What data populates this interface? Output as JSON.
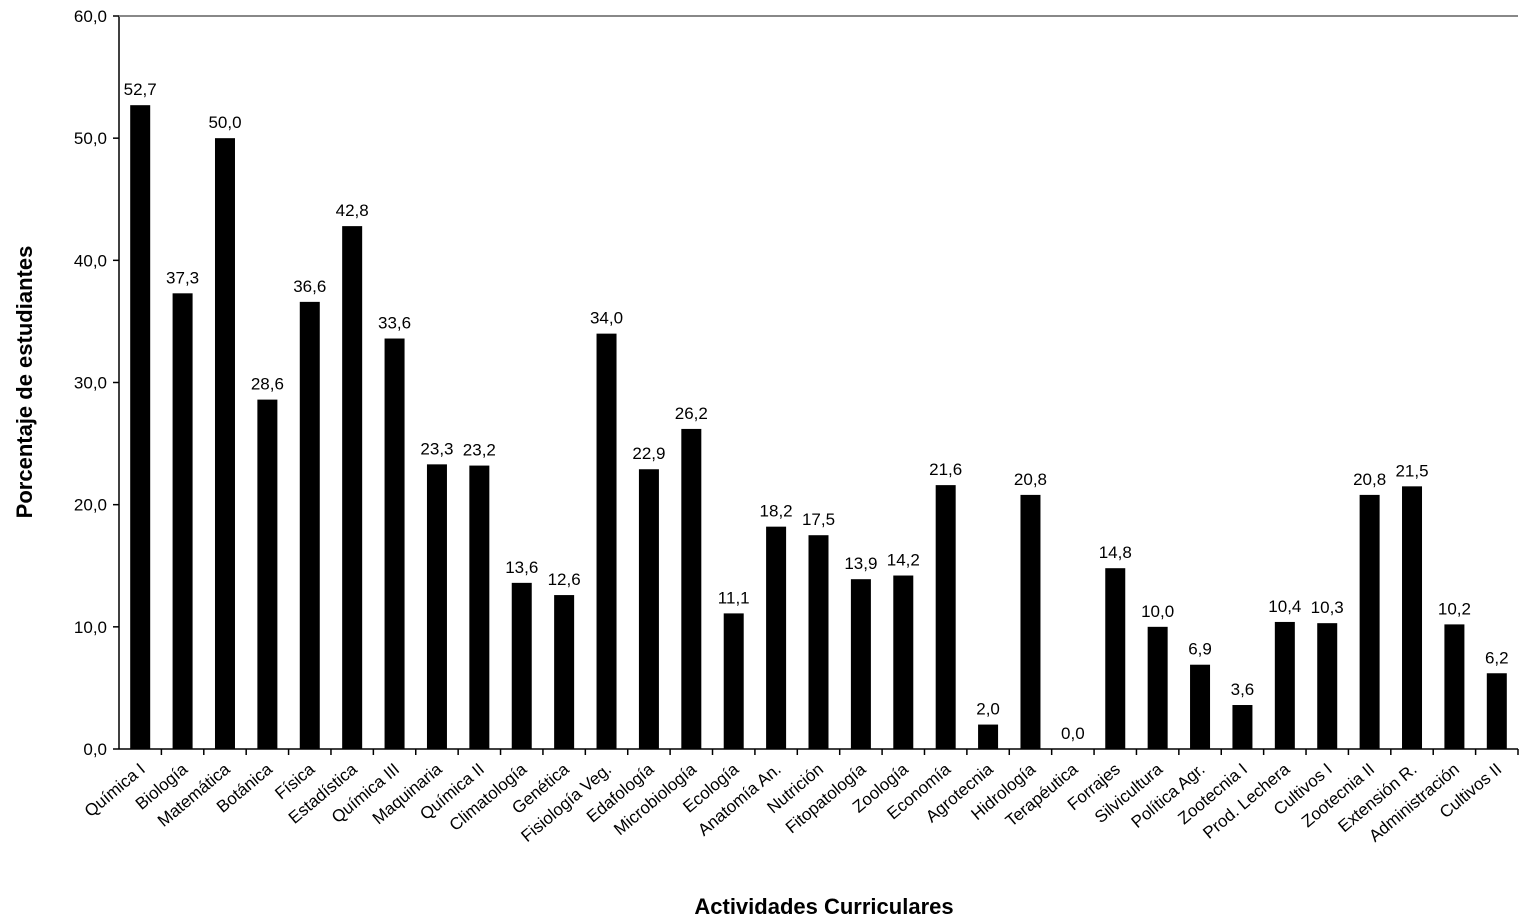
{
  "chart_data": {
    "type": "bar",
    "title": "",
    "xlabel": "Actividades Curriculares",
    "ylabel": "Porcentaje de estudiantes",
    "ylim": [
      0,
      60
    ],
    "yticks": [
      "0,0",
      "10,0",
      "20,0",
      "30,0",
      "40,0",
      "50,0",
      "60,0"
    ],
    "grid": false,
    "bar_color": "#000000",
    "categories": [
      "Química I",
      "Biología",
      "Matemática",
      "Botánica",
      "Física",
      "Estadística",
      "Química III",
      "Maquinaria",
      "Química II",
      "Climatología",
      "Genética",
      "Fisiología Veg.",
      "Edafología",
      "Microbiología",
      "Ecología",
      "Anatomía An.",
      "Nutrición",
      "Fitopatología",
      "Zoología",
      "Economía",
      "Agrotecnia",
      "Hidrología",
      "Terapéutica",
      "Forrajes",
      "Silvicultura",
      "Política Agr.",
      "Zootecnia I",
      "Prod. Lechera",
      "Cultivos I",
      "Zootecnia II",
      "Extensión R.",
      "Administración",
      "Cultivos II"
    ],
    "values": [
      52.7,
      37.3,
      50.0,
      28.6,
      36.6,
      42.8,
      33.6,
      23.3,
      23.2,
      13.6,
      12.6,
      34.0,
      22.9,
      26.2,
      11.1,
      18.2,
      17.5,
      13.9,
      14.2,
      21.6,
      2.0,
      20.8,
      0.0,
      14.8,
      10.0,
      6.9,
      3.6,
      10.4,
      10.3,
      20.8,
      21.5,
      10.2,
      6.2
    ],
    "value_labels": [
      "52,7",
      "37,3",
      "50,0",
      "28,6",
      "36,6",
      "42,8",
      "33,6",
      "23,3",
      "23,2",
      "13,6",
      "12,6",
      "34,0",
      "22,9",
      "26,2",
      "11,1",
      "18,2",
      "17,5",
      "13,9",
      "14,2",
      "21,6",
      "2,0",
      "20,8",
      "0,0",
      "14,8",
      "10,0",
      "6,9",
      "3,6",
      "10,4",
      "10,3",
      "20,8",
      "21,5",
      "10,2",
      "6,2"
    ]
  }
}
